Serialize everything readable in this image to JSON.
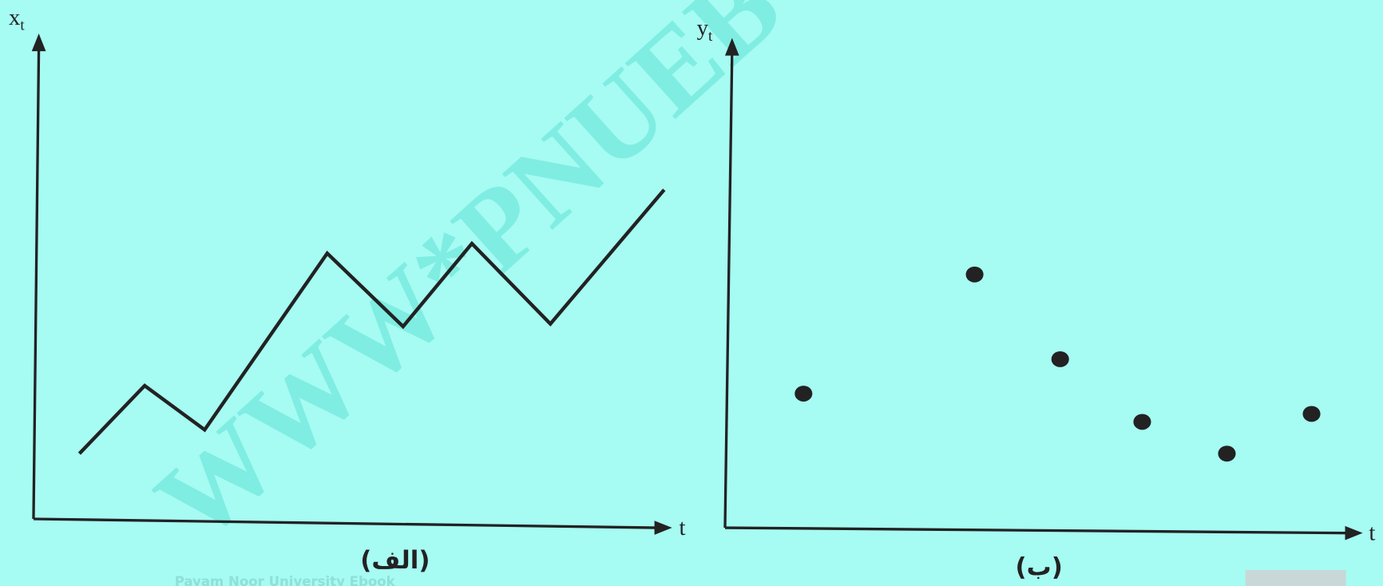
{
  "left_panel": {
    "y_label": "x",
    "y_label_sub": "t",
    "x_label": "t",
    "caption": "(الف)"
  },
  "right_panel": {
    "y_label": "y",
    "y_label_sub": "t",
    "x_label": "t",
    "caption": "(ب)"
  },
  "watermark": "WWW*PNUEB",
  "footer": "Payam Noor University Ebook"
}
